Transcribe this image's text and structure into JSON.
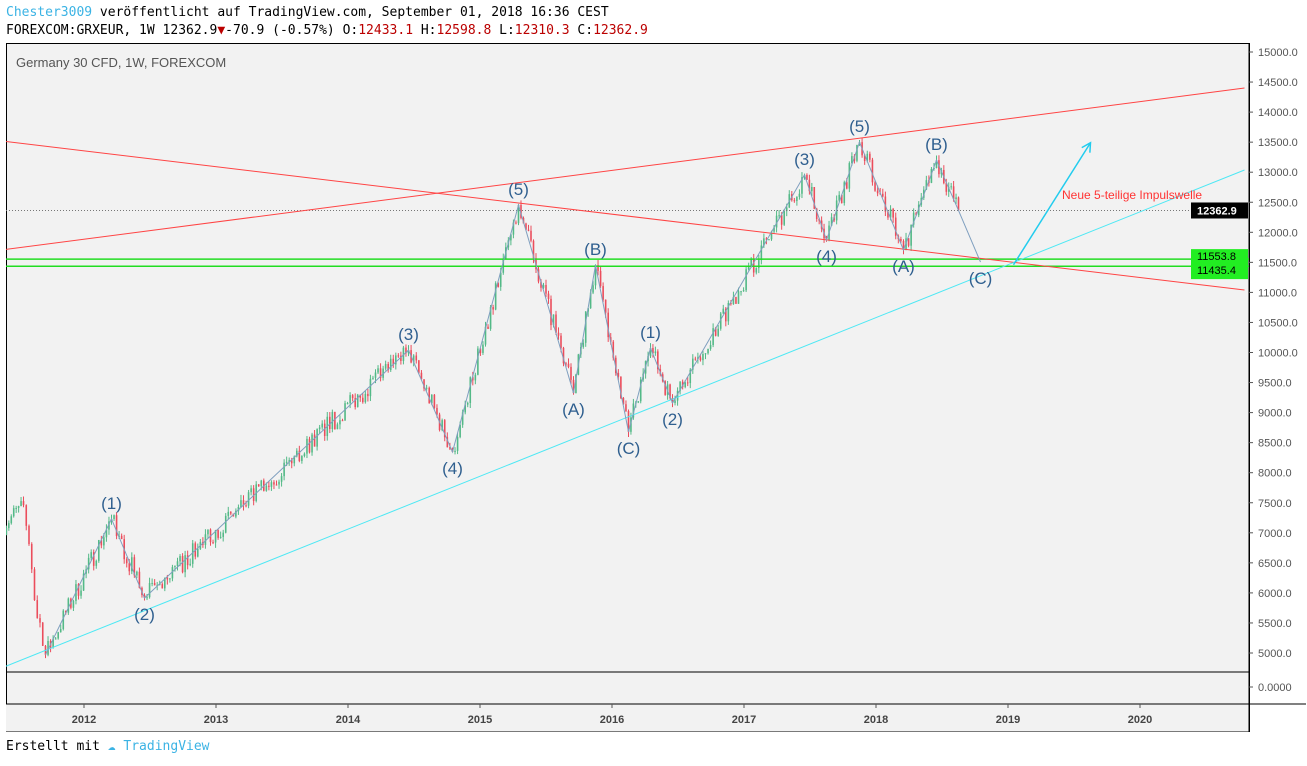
{
  "header": {
    "author": "Chester3009",
    "published": "veröffentlicht auf TradingView.com, September 01, 2018 16:36 CEST",
    "symbol": "FOREXCOM:GRXEUR, 1W",
    "last": "12362.9",
    "change": "-70.9 (-0.57%)",
    "o_label": "O:",
    "o": "12433.1",
    "h_label": "H:",
    "h": "12598.8",
    "l_label": "L:",
    "l": "12310.3",
    "c_label": "C:",
    "c": "12362.9"
  },
  "footer": {
    "made_with": "Erstellt mit",
    "brand": "TradingView"
  },
  "colors": {
    "up": "#53b987",
    "down": "#eb4d5c",
    "wave": "#7f9fbf",
    "label": "#2f5f8f",
    "trend_red": "#f44",
    "trend_cyan": "#4de8f4",
    "support": "#22dd22"
  },
  "chart_data": {
    "type": "candlestick",
    "title": "Germany 30 CFD, 1W, FOREXCOM",
    "ylim": [
      5000,
      15000
    ],
    "yticks": [
      "5000.0",
      "5500.0",
      "6000.0",
      "6500.0",
      "7000.0",
      "7500.0",
      "8000.0",
      "8500.0",
      "9000.0",
      "9500.0",
      "10000.0",
      "10500.0",
      "11000.0",
      "11500.0",
      "12000.0",
      "12500.0",
      "13000.0",
      "13500.0",
      "14000.0",
      "14500.0",
      "15000.0"
    ],
    "lower_pane_tick": "0.0000",
    "xticks": [
      "2012",
      "2013",
      "2014",
      "2015",
      "2016",
      "2017",
      "2018",
      "2019",
      "2020"
    ],
    "last_price": {
      "value": 12362.9,
      "label": "12362.9"
    },
    "support_lines": [
      {
        "value": 11553.8,
        "label": "11553.8"
      },
      {
        "value": 11435.4,
        "label": "11435.4"
      }
    ],
    "pivots": [
      {
        "date": "2011-05",
        "price": 7100,
        "label": ""
      },
      {
        "date": "2011-07",
        "price": 7460,
        "label": ""
      },
      {
        "date": "2011-08",
        "price": 5880,
        "label": ""
      },
      {
        "date": "2011-09",
        "price": 4970,
        "label": ""
      },
      {
        "date": "2012-03",
        "price": 7230,
        "label": "(1)"
      },
      {
        "date": "2012-06",
        "price": 5915,
        "label": "(2)"
      },
      {
        "date": "2014-06",
        "price": 10040,
        "label": "(3)"
      },
      {
        "date": "2014-10",
        "price": 8345,
        "label": "(4)"
      },
      {
        "date": "2015-04",
        "price": 12455,
        "label": "(5)"
      },
      {
        "date": "2015-09",
        "price": 9325,
        "label": "(A)"
      },
      {
        "date": "2015-11",
        "price": 11455,
        "label": "(B)"
      },
      {
        "date": "2016-02",
        "price": 8680,
        "label": "(C)"
      },
      {
        "date": "2016-04",
        "price": 10075,
        "label": "(1)"
      },
      {
        "date": "2016-06",
        "price": 9160,
        "label": "(2)"
      },
      {
        "date": "2017-06",
        "price": 12955,
        "label": "(3)"
      },
      {
        "date": "2017-08",
        "price": 11870,
        "label": "(4)"
      },
      {
        "date": "2017-11",
        "price": 13500,
        "label": "(5)"
      },
      {
        "date": "2018-03",
        "price": 11705,
        "label": "(A)"
      },
      {
        "date": "2018-06",
        "price": 13200,
        "label": "(B)"
      },
      {
        "date": "2018-08",
        "price": 12363,
        "label": ""
      }
    ],
    "projection": {
      "date": "2018-10",
      "price": 11505,
      "label": "(C)"
    },
    "trendlines": [
      {
        "color": "red",
        "from": {
          "date": "2011-05",
          "price": 11706
        },
        "to": {
          "date": "2020-10",
          "price": 14401
        }
      },
      {
        "color": "red",
        "from": {
          "date": "2011-05",
          "price": 13519
        },
        "to": {
          "date": "2020-10",
          "price": 11040
        }
      },
      {
        "color": "cyan",
        "from": {
          "date": "2011-05",
          "price": 4751
        },
        "to": {
          "date": "2020-10",
          "price": 13037
        }
      }
    ],
    "arrow": {
      "from": {
        "date": "2019-01",
        "price": 11460
      },
      "to": {
        "date": "2019-08",
        "price": 13490
      }
    },
    "annotation": "Neue 5-teilige Impulswelle"
  }
}
